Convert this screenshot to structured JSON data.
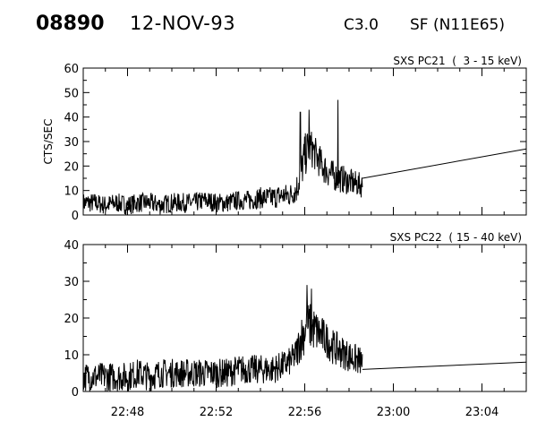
{
  "header": {
    "event_number": "08890",
    "date": "12-NOV-93",
    "goes_class": "C3.0",
    "flare_info": "SF (N11E65)"
  },
  "chart_data": [
    {
      "type": "line",
      "title": "SXS PC21  (  3 - 15 keV)",
      "ylabel": "CTS/SEC",
      "xlabel": "",
      "ylim": [
        0,
        60
      ],
      "yticks": [
        0,
        10,
        20,
        30,
        40,
        50,
        60
      ],
      "xlim": [
        "22:46",
        "23:06"
      ],
      "xticks": [],
      "x_minor_ticks": true,
      "grid": false,
      "x_units": "minutes since 22:00 UT",
      "series": [
        {
          "values": [
            [
              46.0,
              5
            ],
            [
              46.5,
              5
            ],
            [
              47.0,
              4
            ],
            [
              47.5,
              5
            ],
            [
              48.0,
              4
            ],
            [
              48.5,
              5
            ],
            [
              49.0,
              5
            ],
            [
              49.5,
              4
            ],
            [
              50.0,
              5
            ],
            [
              50.5,
              5
            ],
            [
              51.0,
              5
            ],
            [
              51.5,
              6
            ],
            [
              52.0,
              5
            ],
            [
              52.5,
              5
            ],
            [
              53.0,
              6
            ],
            [
              53.5,
              6
            ],
            [
              54.0,
              7
            ],
            [
              54.5,
              7
            ],
            [
              55.0,
              8
            ],
            [
              55.3,
              8
            ],
            [
              55.6,
              10
            ],
            [
              55.8,
              16
            ],
            [
              56.0,
              24
            ],
            [
              56.2,
              28
            ],
            [
              56.4,
              26
            ],
            [
              56.6,
              23
            ],
            [
              56.8,
              20
            ],
            [
              57.0,
              18
            ],
            [
              57.3,
              16
            ],
            [
              57.6,
              15
            ],
            [
              57.9,
              14
            ],
            [
              58.2,
              13
            ],
            [
              58.6,
              12
            ]
          ],
          "noise_amplitude": [
            [
              46.0,
              4
            ],
            [
              53.0,
              4
            ],
            [
              55.5,
              5
            ],
            [
              56.0,
              9
            ],
            [
              56.5,
              7
            ],
            [
              57.5,
              6
            ],
            [
              58.6,
              5
            ]
          ],
          "spikes": [
            [
              55.8,
              42
            ],
            [
              56.2,
              43
            ],
            [
              57.5,
              47
            ]
          ]
        },
        {
          "values": [
            [
              58.6,
              15
            ],
            [
              66.0,
              27
            ]
          ]
        }
      ]
    },
    {
      "type": "line",
      "title": "SXS PC22  ( 15 - 40 keV)",
      "ylabel": "",
      "xlabel": "",
      "ylim": [
        0,
        40
      ],
      "yticks": [
        0,
        10,
        20,
        30,
        40
      ],
      "xlim": [
        "22:46",
        "23:06"
      ],
      "xticks": [
        "22:48",
        "22:52",
        "22:56",
        "23:00",
        "23:04"
      ],
      "x_minor_ticks": true,
      "grid": false,
      "x_units": "minutes since 22:00 UT",
      "series": [
        {
          "values": [
            [
              46.0,
              4
            ],
            [
              46.5,
              4
            ],
            [
              47.0,
              4
            ],
            [
              47.5,
              4
            ],
            [
              48.0,
              4
            ],
            [
              48.5,
              5
            ],
            [
              49.0,
              4
            ],
            [
              49.5,
              5
            ],
            [
              50.0,
              5
            ],
            [
              50.5,
              5
            ],
            [
              51.0,
              5
            ],
            [
              51.5,
              5
            ],
            [
              52.0,
              5
            ],
            [
              52.5,
              5
            ],
            [
              53.0,
              6
            ],
            [
              53.5,
              6
            ],
            [
              54.0,
              6
            ],
            [
              54.5,
              6
            ],
            [
              55.0,
              7
            ],
            [
              55.3,
              8
            ],
            [
              55.6,
              10
            ],
            [
              55.8,
              14
            ],
            [
              56.0,
              17
            ],
            [
              56.2,
              18
            ],
            [
              56.4,
              17
            ],
            [
              56.6,
              16
            ],
            [
              56.8,
              15
            ],
            [
              57.0,
              14
            ],
            [
              57.3,
              12
            ],
            [
              57.6,
              11
            ],
            [
              57.9,
              10
            ],
            [
              58.2,
              9
            ],
            [
              58.6,
              8
            ]
          ],
          "noise_amplitude": [
            [
              46.0,
              4
            ],
            [
              52.0,
              4
            ],
            [
              55.5,
              4
            ],
            [
              56.0,
              7
            ],
            [
              57.0,
              5
            ],
            [
              58.6,
              4
            ]
          ],
          "spikes": [
            [
              56.1,
              29
            ],
            [
              56.3,
              28
            ]
          ]
        },
        {
          "values": [
            [
              58.6,
              6
            ],
            [
              66.0,
              8
            ]
          ]
        }
      ]
    }
  ],
  "colors": {
    "background": "#ffffff",
    "ink": "#000000"
  }
}
